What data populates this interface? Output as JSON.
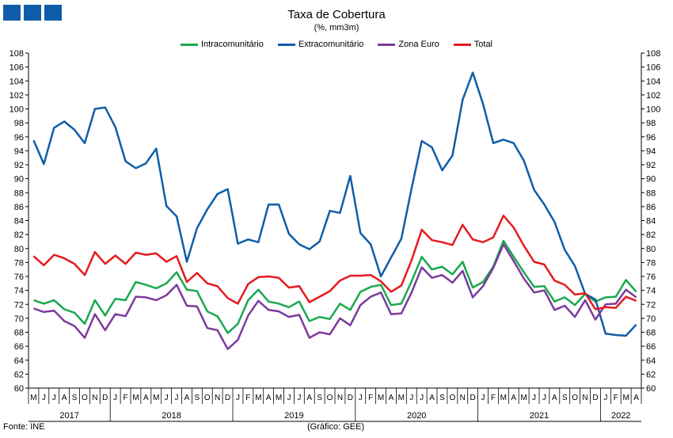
{
  "header": {
    "title": "Taxa de Cobertura",
    "subtitle": "(%, mm3m)",
    "logo_color": "#0f5da8"
  },
  "footer": {
    "source": "Fonte: INE",
    "credit": "(Gráfico: GEE)"
  },
  "chart_data": {
    "type": "line",
    "title": "Taxa de Cobertura",
    "subtitle": "(%, mm3m)",
    "ylim": [
      60,
      108
    ],
    "ytick_step": 2,
    "grid": false,
    "legend_position": "top-center",
    "secondary_y_axis_mirrored": true,
    "month_labels": [
      "M",
      "J",
      "J",
      "A",
      "S",
      "O",
      "N",
      "D",
      "J",
      "F",
      "M",
      "A",
      "M",
      "J",
      "J",
      "A",
      "S",
      "O",
      "N",
      "D",
      "J",
      "F",
      "M",
      "A",
      "M",
      "J",
      "J",
      "A",
      "S",
      "O",
      "N",
      "D",
      "J",
      "F",
      "M",
      "A",
      "M",
      "J",
      "J",
      "A",
      "S",
      "O",
      "N",
      "D",
      "J",
      "F",
      "M",
      "A",
      "M",
      "J",
      "J",
      "A",
      "S",
      "O",
      "N",
      "D",
      "J",
      "F",
      "M",
      "A"
    ],
    "years": [
      {
        "label": "2017",
        "start": 0,
        "end": 7
      },
      {
        "label": "2018",
        "start": 8,
        "end": 19
      },
      {
        "label": "2019",
        "start": 20,
        "end": 31
      },
      {
        "label": "2020",
        "start": 32,
        "end": 43
      },
      {
        "label": "2021",
        "start": 44,
        "end": 55
      },
      {
        "label": "2022",
        "start": 56,
        "end": 59
      }
    ],
    "series": [
      {
        "name": "Intracomunitário",
        "color": "#1aa84f",
        "values": [
          72.6,
          72.1,
          72.6,
          71.3,
          70.8,
          69.2,
          72.6,
          70.4,
          72.8,
          72.6,
          75.2,
          74.8,
          74.3,
          75.0,
          76.6,
          74.1,
          73.9,
          71.0,
          70.3,
          67.9,
          69.2,
          72.6,
          74.1,
          72.4,
          72.1,
          71.6,
          72.4,
          69.6,
          70.2,
          69.9,
          72.1,
          71.2,
          73.8,
          74.5,
          74.8,
          71.9,
          72.1,
          75.3,
          78.8,
          77.0,
          77.4,
          76.3,
          78.1,
          74.4,
          75.2,
          77.4,
          81.1,
          78.8,
          76.6,
          74.5,
          74.6,
          72.4,
          73.0,
          71.9,
          73.5,
          72.4,
          73.0,
          73.1,
          75.5,
          73.8
        ]
      },
      {
        "name": "Extracomunitário",
        "color": "#0f5da8",
        "values": [
          95.5,
          92.1,
          97.3,
          98.2,
          97.0,
          95.1,
          100.0,
          100.2,
          97.4,
          92.5,
          91.5,
          92.2,
          94.3,
          86.1,
          84.6,
          78.1,
          82.9,
          85.6,
          87.8,
          88.5,
          80.7,
          81.3,
          80.9,
          86.3,
          86.3,
          82.1,
          80.6,
          79.9,
          81.0,
          85.4,
          85.1,
          90.4,
          82.2,
          80.6,
          76.0,
          78.7,
          81.4,
          88.6,
          95.4,
          94.5,
          91.2,
          93.3,
          101.3,
          105.2,
          100.7,
          95.1,
          95.6,
          95.1,
          92.6,
          88.4,
          86.3,
          83.8,
          79.8,
          77.5,
          73.5,
          72.7,
          67.8,
          67.6,
          67.5,
          69.1
        ]
      },
      {
        "name": "Zona Euro",
        "color": "#7c3b9c",
        "values": [
          71.4,
          70.9,
          71.1,
          69.6,
          68.9,
          67.2,
          70.6,
          68.3,
          70.6,
          70.3,
          73.1,
          73.0,
          72.6,
          73.3,
          74.8,
          71.8,
          71.7,
          68.6,
          68.3,
          65.6,
          66.9,
          70.4,
          72.5,
          71.2,
          71.0,
          70.2,
          70.5,
          67.2,
          68.0,
          67.7,
          70.0,
          69.0,
          71.9,
          73.1,
          73.7,
          70.6,
          70.7,
          73.7,
          77.3,
          75.8,
          76.2,
          75.1,
          76.8,
          73.0,
          74.6,
          77.2,
          80.6,
          78.2,
          75.7,
          73.7,
          74.0,
          71.2,
          71.8,
          70.2,
          72.6,
          69.8,
          72.0,
          72.1,
          74.1,
          73.0
        ]
      },
      {
        "name": "Total",
        "color": "#e51a1f",
        "values": [
          78.9,
          77.6,
          79.1,
          78.6,
          77.8,
          76.2,
          79.5,
          77.8,
          79.0,
          77.8,
          79.4,
          79.1,
          79.3,
          78.1,
          78.9,
          75.2,
          76.5,
          75.0,
          74.6,
          72.9,
          72.1,
          74.9,
          75.9,
          76.0,
          75.8,
          74.4,
          74.6,
          72.3,
          73.1,
          73.9,
          75.4,
          76.1,
          76.1,
          76.2,
          75.3,
          73.8,
          74.7,
          78.3,
          82.7,
          81.2,
          80.9,
          80.5,
          83.4,
          81.3,
          80.9,
          81.6,
          84.7,
          83.0,
          80.4,
          78.1,
          77.7,
          75.4,
          74.8,
          73.4,
          73.6,
          71.3,
          71.6,
          71.5,
          73.1,
          72.5
        ]
      }
    ]
  }
}
